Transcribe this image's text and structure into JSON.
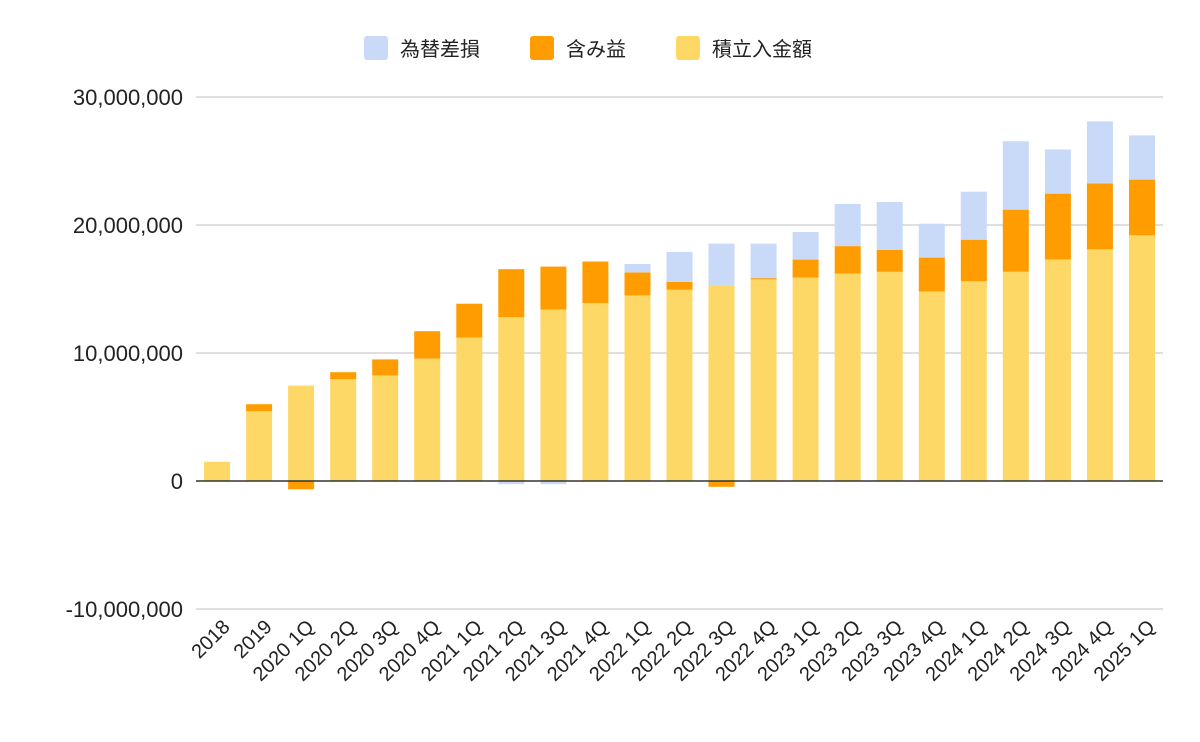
{
  "chart_data": {
    "type": "bar",
    "stacked": true,
    "title": "",
    "xlabel": "",
    "ylabel": "",
    "ylim": [
      -10000000,
      30000000
    ],
    "yticks": [
      30000000,
      20000000,
      10000000,
      0,
      -10000000
    ],
    "ytick_labels": [
      "30,000,000",
      "20,000,000",
      "10,000,000",
      "0",
      "-10,000,000"
    ],
    "grid": true,
    "legend_position": "top-center",
    "categories": [
      "2018",
      "2019",
      "2020 1Q",
      "2020 2Q",
      "2020 3Q",
      "2020 4Q",
      "2021 1Q",
      "2021 2Q",
      "2021 3Q",
      "2021 4Q",
      "2022 1Q",
      "2022 2Q",
      "2022 3Q",
      "2022 4Q",
      "2023 1Q",
      "2023 2Q",
      "2023 3Q",
      "2023 4Q",
      "2024 1Q",
      "2024 2Q",
      "2024 3Q",
      "2024 4Q",
      "2025 1Q"
    ],
    "series": [
      {
        "name": "積立入金額",
        "color": "#fdd866",
        "values": [
          1500000,
          5450000,
          7450000,
          7950000,
          8250000,
          9550000,
          11200000,
          12800000,
          13400000,
          13900000,
          14500000,
          14950000,
          15300000,
          15750000,
          15900000,
          16200000,
          16350000,
          14800000,
          15600000,
          16350000,
          17300000,
          18100000,
          19200000
        ]
      },
      {
        "name": "含み益",
        "color": "#ff9d00",
        "values": [
          0,
          550000,
          -650000,
          550000,
          1250000,
          2150000,
          2650000,
          3750000,
          3350000,
          3250000,
          1800000,
          600000,
          -450000,
          100000,
          1400000,
          2150000,
          1700000,
          2650000,
          3250000,
          4850000,
          5150000,
          5150000,
          4350000
        ]
      },
      {
        "name": "為替差損",
        "color": "#c9daf8",
        "values": [
          0,
          0,
          0,
          0,
          0,
          -50000,
          0,
          -250000,
          -250000,
          0,
          650000,
          2350000,
          3250000,
          2700000,
          2150000,
          3300000,
          3750000,
          2650000,
          3750000,
          5350000,
          3450000,
          4850000,
          3450000
        ]
      }
    ],
    "legend_order": [
      "為替差損",
      "含み益",
      "積立入金額"
    ]
  }
}
